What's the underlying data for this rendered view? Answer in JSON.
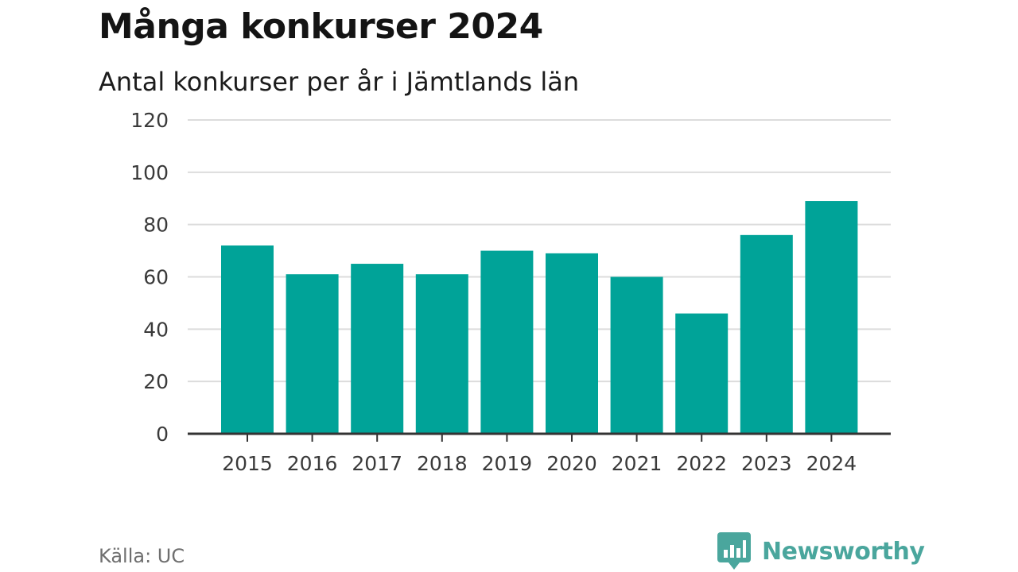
{
  "header": {
    "title": "Många konkurser 2024",
    "subtitle": "Antal konkurser per år i Jämtlands län"
  },
  "footer": {
    "source": "Källa: UC",
    "brand": "Newsworthy"
  },
  "colors": {
    "bar": "#00a398",
    "grid": "#dcdcdc",
    "axis": "#333333",
    "brand": "#4aa69d"
  },
  "chart_data": {
    "type": "bar",
    "title": "Många konkurser 2024",
    "subtitle": "Antal konkurser per år i Jämtlands län",
    "categories": [
      "2015",
      "2016",
      "2017",
      "2018",
      "2019",
      "2020",
      "2021",
      "2022",
      "2023",
      "2024"
    ],
    "values": [
      72,
      61,
      65,
      61,
      70,
      69,
      60,
      46,
      76,
      89
    ],
    "ylim": [
      0,
      120
    ],
    "yticks": [
      0,
      20,
      40,
      60,
      80,
      100,
      120
    ],
    "grid": true,
    "legend": "none"
  }
}
